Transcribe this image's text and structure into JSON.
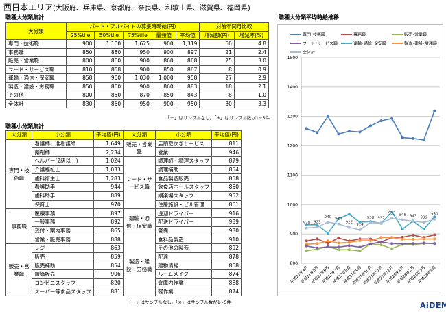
{
  "title": "西日本エリア",
  "title_sub": "(大阪府、兵庫県、京都府、奈良県、和歌山県、滋賀県、福岡県)",
  "table1": {
    "section": "職種大分類集計",
    "head_cat": "大分類",
    "head_group": "パート・アルバイトの募集時時給(円)",
    "head_yoy": "対前年同月比較",
    "cols": [
      "25%tile",
      "50%tile",
      "75%tile",
      "最頻値",
      "平均値",
      "増減額(円)",
      "増減率(%)"
    ],
    "rows": [
      [
        "専門・技術職",
        "900",
        "1,100",
        "1,625",
        "900",
        "1,319",
        "60",
        "4.8"
      ],
      [
        "事務職",
        "850",
        "880",
        "950",
        "900",
        "897",
        "21",
        "2.4"
      ],
      [
        "販売・営業職",
        "800",
        "860",
        "900",
        "860",
        "868",
        "25",
        "3.0"
      ],
      [
        "フード・サービス職",
        "810",
        "858",
        "900",
        "850",
        "867",
        "8",
        "0.9"
      ],
      [
        "運輸・通信・保安職",
        "858",
        "900",
        "1,030",
        "1,000",
        "958",
        "27",
        "2.9"
      ],
      [
        "製造・建設・労務職",
        "850",
        "860",
        "900",
        "860",
        "883",
        "18",
        "2.1"
      ],
      [
        "その他",
        "800",
        "850",
        "870",
        "850",
        "843",
        "8",
        "1.0"
      ],
      [
        "全体計",
        "830",
        "860",
        "950",
        "900",
        "950",
        "30",
        "3.3"
      ]
    ],
    "note": "「－」はサンプルなし。「※」はサンプル数が1~5件"
  },
  "table2": {
    "section": "職種小分類集計",
    "heads": [
      "大分類",
      "小分類",
      "平均値(円)",
      "大分類",
      "小分類",
      "平均値(円)"
    ],
    "left": [
      {
        "group": "専門・技術職",
        "items": [
          [
            "看護師、准看護師",
            "1,649"
          ],
          [
            "薬剤師",
            "2,234"
          ],
          [
            "ヘルパー(2級以上)",
            "1,024"
          ],
          [
            "介護福祉士",
            "1,033"
          ],
          [
            "歯科衛生士",
            "1,283"
          ],
          [
            "看護助手",
            "944"
          ],
          [
            "歯科助手",
            "889"
          ],
          [
            "保育士",
            "970"
          ]
        ]
      },
      {
        "group": "事務職",
        "items": [
          [
            "医療事務",
            "897"
          ],
          [
            "一般事務",
            "892"
          ],
          [
            "受付・案内事務",
            "865"
          ],
          [
            "営業・販売事務",
            "888"
          ]
        ]
      },
      {
        "group": "販売・営業職",
        "items": [
          [
            "レジ",
            "863"
          ],
          [
            "販売",
            "859"
          ],
          [
            "販売補助",
            "854"
          ],
          [
            "服飾販売",
            "906"
          ],
          [
            "コンビニスタッフ",
            "820"
          ],
          [
            "スーパー等食品スタッフ",
            "881"
          ]
        ]
      }
    ],
    "right": [
      {
        "group": "販売・営業職",
        "items": [
          [
            "店頭取次ぎサービス",
            "811"
          ],
          [
            "営業",
            "946"
          ]
        ]
      },
      {
        "group": "フード・サービス職",
        "items": [
          [
            "調理師・調理スタッフ",
            "879"
          ],
          [
            "調理補助",
            "854"
          ],
          [
            "食品製造販売",
            "858"
          ],
          [
            "飲食店ホールスタッフ",
            "850"
          ],
          [
            "娯楽場スタッフ",
            "952"
          ],
          [
            "住居施設・ビル管理",
            "861"
          ]
        ]
      },
      {
        "group": "運輸・通信・保安職",
        "items": [
          [
            "送迎ドライバー",
            "916"
          ],
          [
            "配送ドライバー",
            "939"
          ],
          [
            "警備",
            "930"
          ]
        ]
      },
      {
        "group": "製造・建設・労務職",
        "items": [
          [
            "食料品製造",
            "910"
          ],
          [
            "その他の製造",
            "892"
          ],
          [
            "配達",
            "878"
          ],
          [
            "建物清掃",
            "868"
          ],
          [
            "ルームメイク",
            "874"
          ],
          [
            "倉庫内作業",
            "888"
          ],
          [
            "軽作業",
            "874"
          ]
        ]
      }
    ],
    "note": "「－」はサンプルなし。「※」はサンプル数が1~5件"
  },
  "chart_data": {
    "type": "line",
    "title": "職種大分類平均時給推移",
    "ylim": [
      800,
      1500
    ],
    "yticks": [
      800,
      900,
      1000,
      1100,
      1200,
      1300,
      1400,
      1500
    ],
    "grid": true,
    "legend": "top",
    "categories": [
      "平成27年4月",
      "平成27年5月",
      "平成27年6月",
      "平成27年7月",
      "平成27年8月",
      "平成27年9月",
      "平成27年10月",
      "平成27年11月",
      "平成27年12月",
      "平成28年1月",
      "平成28年2月",
      "平成28年3月",
      "平成28年4月"
    ],
    "series": [
      {
        "name": "専門･技術職",
        "color": "#4a7ebb",
        "marker": "diamond",
        "values": [
          1259,
          1245,
          1300,
          1240,
          1250,
          1247,
          1268,
          1285,
          1293,
          1228,
          1225,
          1220,
          1319
        ]
      },
      {
        "name": "事務職",
        "color": "#be4b48",
        "marker": "square",
        "values": [
          876,
          883,
          868,
          886,
          876,
          883,
          883,
          872,
          888,
          889,
          896,
          888,
          897
        ]
      },
      {
        "name": "販売･営業職",
        "color": "#98b954",
        "marker": "triangle",
        "values": [
          843,
          848,
          857,
          846,
          846,
          842,
          866,
          863,
          850,
          864,
          864,
          867,
          868
        ]
      },
      {
        "name": "フード･サービス職",
        "color": "#7d60a0",
        "marker": "x",
        "values": [
          859,
          852,
          856,
          855,
          860,
          855,
          866,
          873,
          867,
          866,
          867,
          869,
          867
        ]
      },
      {
        "name": "運輸･通信･保安職",
        "color": "#46aac5",
        "marker": "star",
        "values": [
          931,
          931,
          902,
          952,
          967,
          940,
          942,
          936,
          975,
          917,
          944,
          916,
          958
        ]
      },
      {
        "name": "製造･建設･労務職",
        "color": "#f69240",
        "marker": "circle",
        "values": [
          865,
          867,
          876,
          869,
          871,
          877,
          877,
          888,
          888,
          882,
          882,
          883,
          883
        ]
      },
      {
        "name": "全体計",
        "color": "#a8bcd8",
        "marker": "plus",
        "values": [
          920,
          923,
          940,
          934,
          922,
          914,
          938,
          937,
          953,
          948,
          943,
          939,
          950
        ],
        "labels": true
      }
    ]
  },
  "logo": "AiDEM"
}
